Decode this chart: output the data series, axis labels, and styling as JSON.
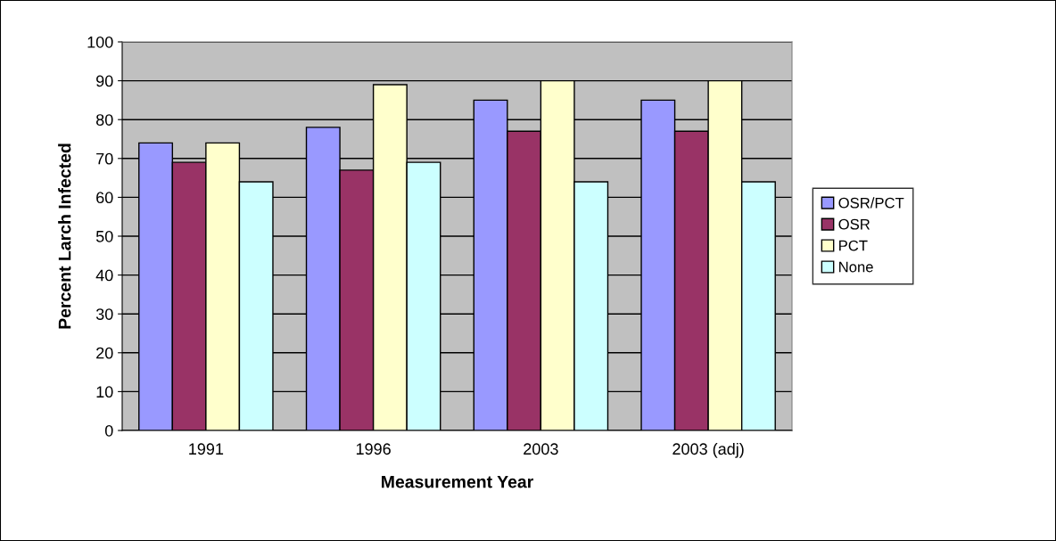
{
  "chart_data": {
    "type": "bar",
    "xlabel": "Measurement Year",
    "ylabel": "Percent Larch Infected",
    "categories": [
      "1991",
      "1996",
      "2003",
      "2003 (adj)"
    ],
    "series": [
      {
        "name": "OSR/PCT",
        "color": "#9999ff",
        "values": [
          74,
          78,
          85,
          85
        ]
      },
      {
        "name": "OSR",
        "color": "#993366",
        "values": [
          69,
          67,
          77,
          77
        ]
      },
      {
        "name": "PCT",
        "color": "#ffffcc",
        "values": [
          74,
          89,
          90,
          90
        ]
      },
      {
        "name": "None",
        "color": "#ccffff",
        "values": [
          64,
          69,
          64,
          64
        ]
      }
    ],
    "ylim": [
      0,
      100
    ],
    "yticks": [
      0,
      10,
      20,
      30,
      40,
      50,
      60,
      70,
      80,
      90,
      100
    ],
    "grid": "y",
    "legend": "right"
  }
}
